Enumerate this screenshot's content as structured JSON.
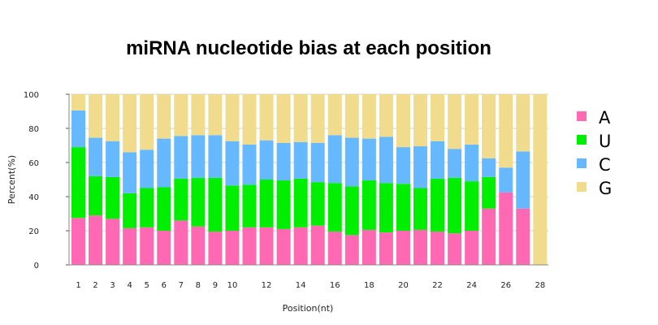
{
  "chart_data": {
    "type": "bar",
    "stacked": true,
    "title": "miRNA nucleotide bias at each position",
    "xlabel": "Position(nt)",
    "ylabel": "Percent(%)",
    "ylim": [
      0,
      100
    ],
    "yticks": [
      0,
      20,
      40,
      60,
      80,
      100
    ],
    "grid": true,
    "legend_position": "right",
    "categories": [
      "1",
      "2",
      "3",
      "4",
      "5",
      "6",
      "7",
      "8",
      "9",
      "10",
      "11",
      "12",
      "13",
      "14",
      "15",
      "16",
      "17",
      "18",
      "19",
      "20",
      "21",
      "22",
      "23",
      "24",
      "25",
      "26",
      "27",
      "28"
    ],
    "x_tick_labels": [
      "1",
      "2",
      "3",
      "4",
      "5",
      "6",
      "7",
      "8",
      "9",
      "10",
      "",
      "12",
      "",
      "14",
      "",
      "16",
      "",
      "18",
      "",
      "20",
      "",
      "22",
      "",
      "24",
      "",
      "26",
      "",
      "28"
    ],
    "series": [
      {
        "name": "A",
        "color": "#ff69b4",
        "values": [
          27.5,
          29,
          27,
          21.5,
          22,
          20,
          26,
          22.5,
          19.5,
          20,
          22,
          22,
          21,
          22,
          23,
          19.5,
          17.5,
          20.5,
          19,
          20,
          20.5,
          19.5,
          18.5,
          20,
          33,
          42.5,
          33,
          0
        ]
      },
      {
        "name": "U",
        "color": "#00ee00",
        "values": [
          41.5,
          23,
          24.5,
          20.5,
          23,
          25.5,
          24.5,
          28.5,
          31.5,
          26.5,
          25,
          28,
          28.5,
          28.5,
          25.5,
          28.5,
          28.5,
          29,
          29,
          27.5,
          24.5,
          31,
          32.5,
          29,
          18.5,
          0,
          0,
          0
        ]
      },
      {
        "name": "C",
        "color": "#66b8ff",
        "values": [
          21.5,
          22.5,
          21,
          24,
          22.5,
          28.5,
          25,
          25,
          25,
          26,
          23.5,
          23,
          22,
          21.5,
          23,
          28,
          28.5,
          24.5,
          27,
          21.5,
          24.5,
          22,
          17,
          21.5,
          11,
          14.5,
          33.5,
          0
        ]
      },
      {
        "name": "G",
        "color": "#f0dc8c",
        "values": [
          9.5,
          25.5,
          27.5,
          34,
          32.5,
          26,
          24.5,
          24,
          24,
          27.5,
          29.5,
          27,
          28.5,
          28,
          28.5,
          24,
          25.5,
          26,
          25,
          31,
          30.5,
          27.5,
          32,
          29.5,
          37.5,
          43,
          33.5,
          100
        ]
      }
    ]
  }
}
